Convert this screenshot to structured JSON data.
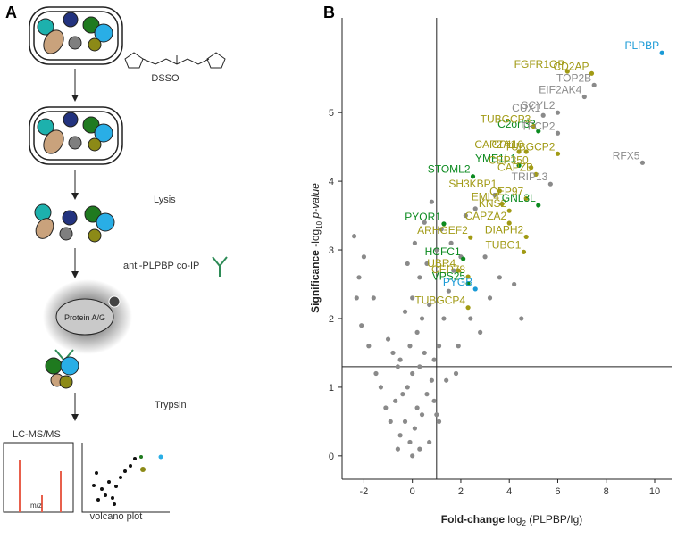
{
  "panel_a": {
    "label": "A",
    "reagent": "DSSO",
    "step_lysis": "Lysis",
    "step_ip": "anti-PLPBP co-IP",
    "bead": "Protein A/G",
    "step_digest": "Trypsin",
    "ms_label": "LC-MS/MS",
    "ms_axis": "m/z",
    "volcano_label": "volcano plot"
  },
  "chart_data": {
    "type": "scatter",
    "panel_label": "B",
    "y_label": {
      "bold": "Significance",
      "prefix": "-log",
      "sub": "10",
      "suffix": "p-value"
    },
    "x_label": {
      "bold": "Fold-change",
      "prefix": "log",
      "sub": "2",
      "suffix": "(PLPBP/Ig)"
    },
    "xlim": [
      -2.9,
      10.7
    ],
    "ylim": [
      -0.34,
      6.38
    ],
    "xticks": [
      -2,
      0,
      2,
      4,
      6,
      8,
      10
    ],
    "yticks": [
      0,
      1,
      2,
      3,
      4,
      5
    ],
    "thresholds": {
      "x": 1,
      "y": 1.3
    },
    "background": {
      "color": "#8a8a8a",
      "x": [
        -0.5,
        -0.3,
        -0.1,
        0.1,
        0.2,
        0.4,
        -0.7,
        -0.9,
        0.6,
        0.8,
        -0.2,
        0,
        0.3,
        -0.4,
        0.5,
        -1.1,
        -1.3,
        0.9,
        1.1,
        -0.6,
        0.2,
        -0.1,
        0.4,
        0.7,
        -0.8,
        1.3,
        1.5,
        -1.5,
        0.0,
        0.3,
        -0.3,
        0.6,
        1.0,
        -1.0,
        1.7,
        2.0,
        -1.8,
        -2.1,
        -2.3,
        -2.4,
        0.5,
        0.8,
        1.2,
        1.6,
        2.2,
        2.6,
        3.0,
        -0.2,
        0.1,
        -0.5,
        0.9,
        1.4,
        1.9,
        2.4,
        3.2,
        3.6,
        4.2,
        -2.0,
        -1.6,
        0.3,
        0.7,
        1.1,
        0.0,
        -0.6,
        1.8,
        2.8,
        3.4,
        4.5,
        -2.2,
        1.0
      ],
      "y": [
        0.3,
        0.5,
        0.2,
        0.4,
        0.7,
        0.6,
        0.8,
        0.5,
        0.9,
        1.1,
        1.0,
        1.2,
        1.3,
        0.9,
        1.5,
        0.7,
        1.0,
        1.4,
        1.6,
        1.3,
        1.8,
        1.6,
        2.0,
        2.2,
        1.5,
        2.0,
        2.4,
        1.2,
        2.3,
        2.6,
        2.1,
        2.8,
        3.0,
        1.7,
        2.7,
        2.9,
        1.6,
        1.9,
        2.3,
        3.2,
        3.4,
        3.7,
        3.3,
        3.1,
        3.5,
        3.6,
        2.9,
        2.8,
        3.1,
        1.4,
        0.8,
        1.1,
        1.6,
        2.0,
        2.3,
        2.6,
        2.5,
        2.9,
        2.3,
        0.1,
        0.2,
        0.5,
        0.0,
        0.1,
        1.2,
        1.8,
        3.8,
        2.0,
        2.6,
        0.6
      ]
    },
    "labeled": [
      {
        "label": "PLPBP",
        "x": 10.3,
        "y": 5.87,
        "color": "#1a9ad6"
      },
      {
        "label": "FGFR1OP",
        "x": 6.4,
        "y": 5.6,
        "color": "#a19a14"
      },
      {
        "label": "CD2AP",
        "x": 7.4,
        "y": 5.57,
        "color": "#a19a14"
      },
      {
        "label": "EIF2AK4",
        "x": 7.1,
        "y": 5.23,
        "color": "#8a8a8a"
      },
      {
        "label": "TOP2B",
        "x": 7.5,
        "y": 5.4,
        "color": "#8a8a8a"
      },
      {
        "label": "CUX1",
        "x": 5.4,
        "y": 4.96,
        "color": "#8a8a8a"
      },
      {
        "label": "SCYL2",
        "x": 6.0,
        "y": 5.0,
        "color": "#8a8a8a"
      },
      {
        "label": "C2orf33",
        "x": 5.2,
        "y": 4.73,
        "color": "#0b8a1f"
      },
      {
        "label": "TUBGCP3",
        "x": 5.0,
        "y": 4.8,
        "color": "#a19a14"
      },
      {
        "label": "TFCP2",
        "x": 6.0,
        "y": 4.7,
        "color": "#8a8a8a"
      },
      {
        "label": "CAPZA1",
        "x": 4.4,
        "y": 4.43,
        "color": "#a19a14"
      },
      {
        "label": "CP110",
        "x": 4.7,
        "y": 4.43,
        "color": "#a19a14"
      },
      {
        "label": "TUBGCP2",
        "x": 6.0,
        "y": 4.4,
        "color": "#a19a14"
      },
      {
        "label": "RFX5",
        "x": 9.5,
        "y": 4.27,
        "color": "#8a8a8a"
      },
      {
        "label": "YME1L1",
        "x": 4.4,
        "y": 4.23,
        "color": "#0b8a1f"
      },
      {
        "label": "CEP350",
        "x": 4.9,
        "y": 4.2,
        "color": "#a19a14"
      },
      {
        "label": "CAPZB",
        "x": 5.1,
        "y": 4.1,
        "color": "#a19a14"
      },
      {
        "label": "STOML2",
        "x": 2.5,
        "y": 4.07,
        "color": "#0b8a1f"
      },
      {
        "label": "TRIP13",
        "x": 5.7,
        "y": 3.96,
        "color": "#8a8a8a"
      },
      {
        "label": "SH3KBP1",
        "x": 3.6,
        "y": 3.86,
        "color": "#a19a14"
      },
      {
        "label": "CEP97",
        "x": 4.7,
        "y": 3.75,
        "color": "#a19a14"
      },
      {
        "label": "EML4",
        "x": 3.7,
        "y": 3.67,
        "color": "#a19a14"
      },
      {
        "label": "KNS2",
        "x": 4.0,
        "y": 3.57,
        "color": "#a19a14"
      },
      {
        "label": "GNL3L",
        "x": 5.2,
        "y": 3.65,
        "color": "#0b8a1f"
      },
      {
        "label": "PYOR1",
        "x": 1.3,
        "y": 3.38,
        "color": "#0b8a1f"
      },
      {
        "label": "CAPZA2",
        "x": 4.0,
        "y": 3.39,
        "color": "#a19a14"
      },
      {
        "label": "ARHGEF2",
        "x": 2.4,
        "y": 3.18,
        "color": "#a19a14"
      },
      {
        "label": "DIAPH2",
        "x": 4.7,
        "y": 3.19,
        "color": "#a19a14"
      },
      {
        "label": "TUBG1",
        "x": 4.6,
        "y": 2.97,
        "color": "#a19a14"
      },
      {
        "label": "HCFC1",
        "x": 2.1,
        "y": 2.87,
        "color": "#0b8a1f"
      },
      {
        "label": "UBR4",
        "x": 1.9,
        "y": 2.7,
        "color": "#a19a14"
      },
      {
        "label": "CEP78",
        "x": 2.3,
        "y": 2.61,
        "color": "#a19a14"
      },
      {
        "label": "VPS25",
        "x": 2.3,
        "y": 2.51,
        "color": "#0b8a1f"
      },
      {
        "label": "PYGB",
        "x": 2.6,
        "y": 2.43,
        "color": "#1a9ad6"
      },
      {
        "label": "TUBGCP4",
        "x": 2.3,
        "y": 2.16,
        "color": "#a19a14"
      }
    ]
  }
}
